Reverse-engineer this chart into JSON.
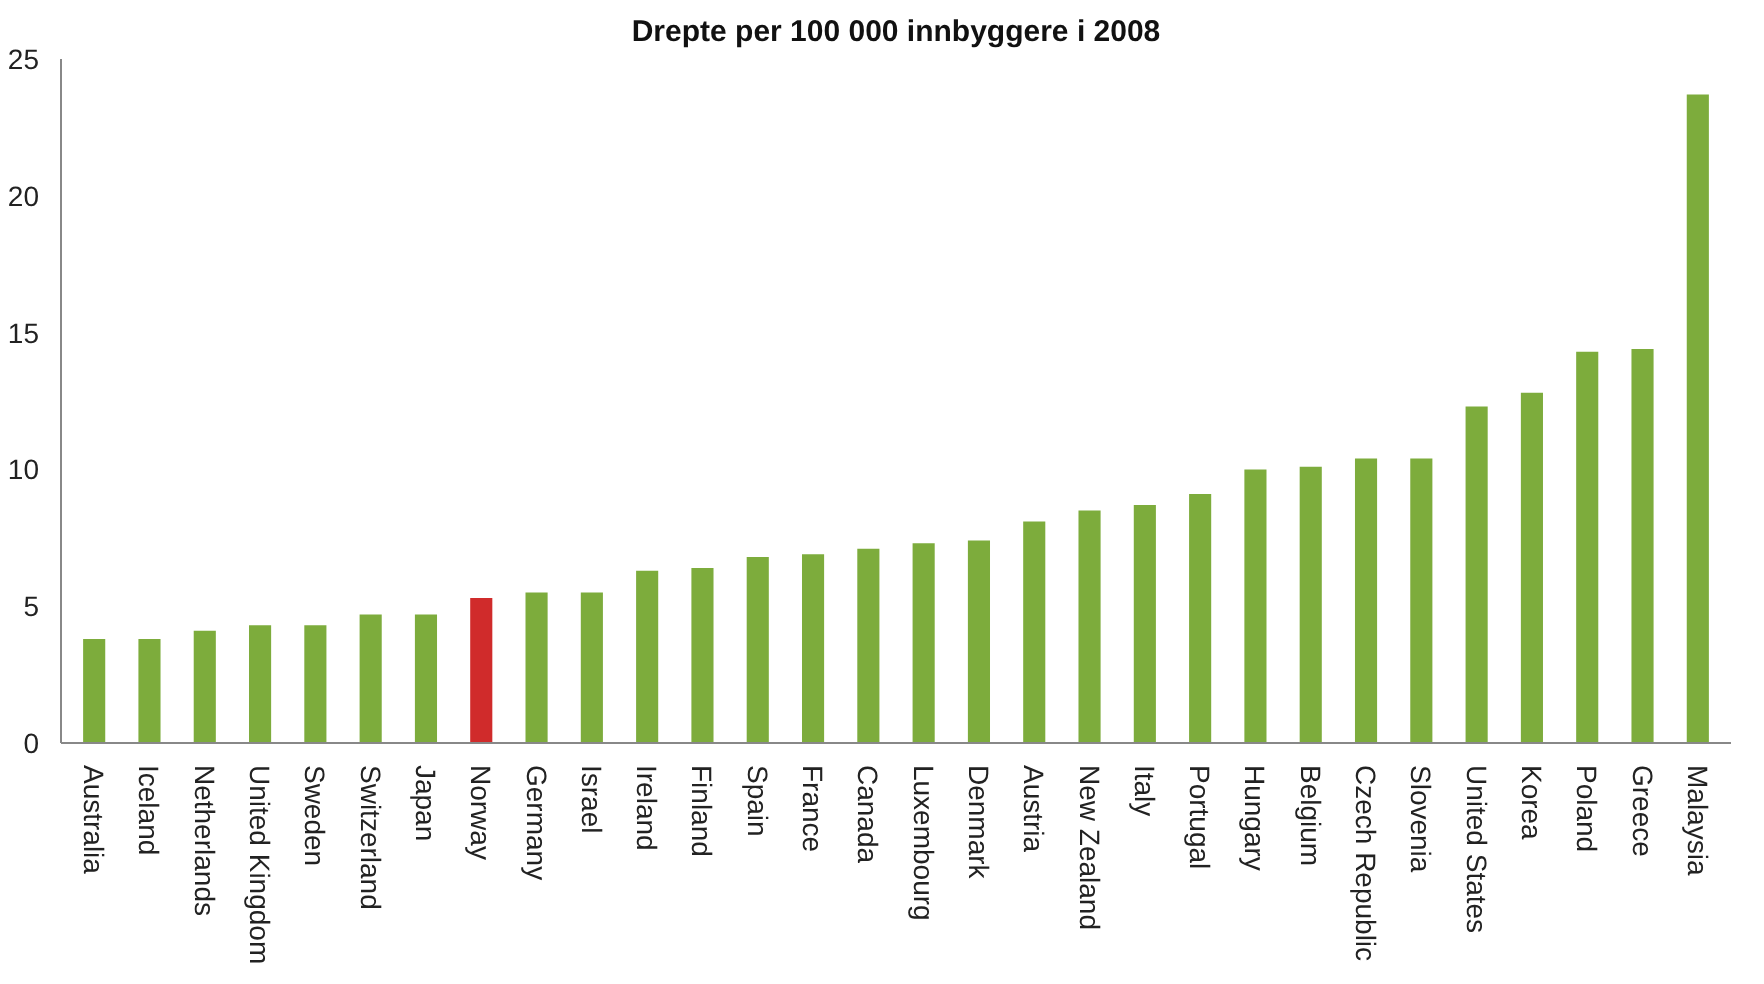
{
  "chart_data": {
    "type": "bar",
    "title": "Drepte per 100 000 innbyggere i 2008",
    "categories": [
      "Australia",
      "Iceland",
      "Netherlands",
      "United Kingdom",
      "Sweden",
      "Switzerland",
      "Japan",
      "Norway",
      "Germany",
      "Israel",
      "Ireland",
      "Finland",
      "Spain",
      "France",
      "Canada",
      "Luxembourg",
      "Denmark",
      "Austria",
      "New Zealand",
      "Italy",
      "Portugal",
      "Hungary",
      "Belgium",
      "Czech Republic",
      "Slovenia",
      "United States",
      "Korea",
      "Poland",
      "Greece",
      "Malaysia"
    ],
    "values": [
      3.8,
      3.8,
      4.1,
      4.3,
      4.3,
      4.7,
      4.7,
      5.3,
      5.5,
      5.5,
      6.3,
      6.4,
      6.8,
      6.9,
      7.1,
      7.3,
      7.4,
      8.1,
      8.5,
      8.7,
      9.1,
      10.0,
      10.1,
      10.4,
      10.4,
      12.3,
      12.8,
      14.3,
      14.4,
      23.7
    ],
    "colors": [
      "#7dac3c",
      "#7dac3c",
      "#7dac3c",
      "#7dac3c",
      "#7dac3c",
      "#7dac3c",
      "#7dac3c",
      "#d02b2b",
      "#7dac3c",
      "#7dac3c",
      "#7dac3c",
      "#7dac3c",
      "#7dac3c",
      "#7dac3c",
      "#7dac3c",
      "#7dac3c",
      "#7dac3c",
      "#7dac3c",
      "#7dac3c",
      "#7dac3c",
      "#7dac3c",
      "#7dac3c",
      "#7dac3c",
      "#7dac3c",
      "#7dac3c",
      "#7dac3c",
      "#7dac3c",
      "#7dac3c",
      "#7dac3c",
      "#7dac3c"
    ],
    "ylim": [
      0,
      25
    ],
    "yticks": [
      0,
      5,
      10,
      15,
      20,
      25
    ],
    "grid": false
  }
}
